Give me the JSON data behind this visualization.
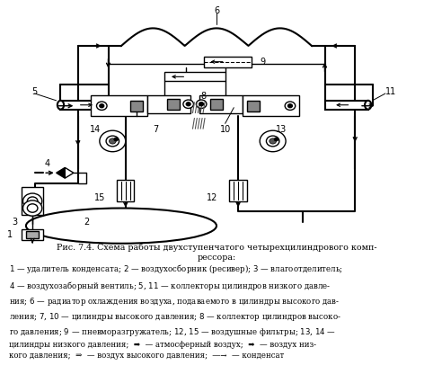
{
  "title_line1": "Рис. 7.4. Схема работы двухступенчатого четырехцилиндрового комп-",
  "title_line2": "рессора:",
  "legend_line1": "1 — удалитель конденсата; 2 — воздухосборник (ресивер); 3 — влагоотделитель;",
  "legend_line2": "4 — воздухозаборный вентиль; 5, 11 — коллекторы цилиндров низкого давле-",
  "legend_line3": "ния; 6 — радиатор охлаждения воздуха, подаваемого в цилиндры высокого дав-",
  "legend_line4": "ления; 7, 10 — цилиндры высокого давления; 8 — коллектор цилиндров высоко-",
  "legend_line5": "го давления; 9 — пневморазгружатель; 12, 15 — воздушные фильтры; 13, 14 —",
  "legend_line6": "цилиндры низкого давления;",
  "bg_color": "#ffffff",
  "line_color": "#000000"
}
